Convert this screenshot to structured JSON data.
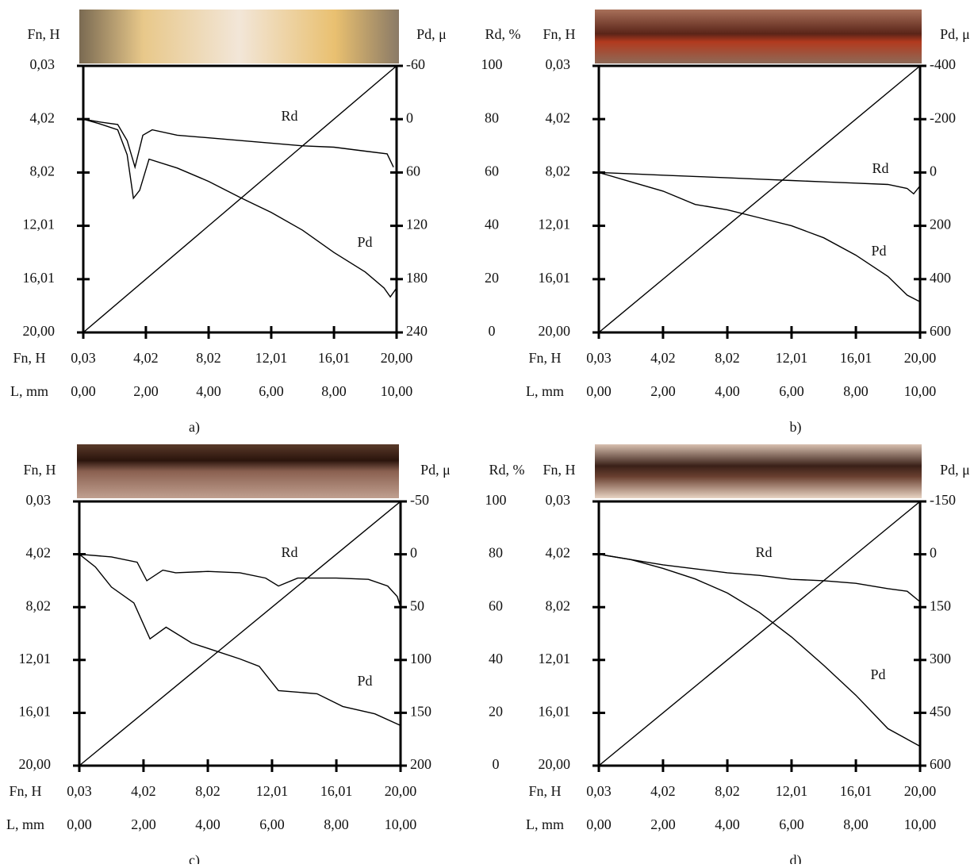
{
  "chart_data": [
    {
      "type": "line",
      "panel": "a)",
      "ylabel": "Fn, H",
      "y2label": "Pd, μ",
      "y3label": "Rd, %",
      "xlabel": "Fn, H",
      "x2label": "L, mm",
      "ylim": [
        20.0,
        0.03
      ],
      "yticks": [
        {
          "value": 0.03,
          "label": "0,03"
        },
        {
          "value": 4.02,
          "label": "4,02"
        },
        {
          "value": 8.02,
          "label": "8,02"
        },
        {
          "value": 12.01,
          "label": "12,01"
        },
        {
          "value": 16.01,
          "label": "16,01"
        },
        {
          "value": 20.0,
          "label": "20,00"
        }
      ],
      "y2lim": [
        240,
        -60
      ],
      "y2ticks": [
        -60,
        0,
        60,
        120,
        180,
        240
      ],
      "y3lim": [
        0,
        100
      ],
      "y3ticks": [
        0,
        20,
        40,
        60,
        80,
        100
      ],
      "xlim": [
        0.03,
        20.0
      ],
      "xticks": [
        {
          "value": 0.03,
          "label": "0,03"
        },
        {
          "value": 4.02,
          "label": "4,02"
        },
        {
          "value": 8.02,
          "label": "8,02"
        },
        {
          "value": 12.01,
          "label": "12,01"
        },
        {
          "value": 16.01,
          "label": "16,01"
        },
        {
          "value": 20.0,
          "label": "20,00"
        }
      ],
      "x2lim": [
        0,
        10
      ],
      "x2ticks": [
        {
          "value": 0,
          "label": "0,00"
        },
        {
          "value": 2,
          "label": "2,00"
        },
        {
          "value": 4,
          "label": "4,00"
        },
        {
          "value": 6,
          "label": "6,00"
        },
        {
          "value": 8,
          "label": "8,00"
        },
        {
          "value": 10,
          "label": "10,00"
        }
      ],
      "load": {
        "x": [
          0,
          10
        ],
        "values": [
          0.03,
          20.0
        ]
      },
      "series": [
        {
          "name": "Rd",
          "axis": "y3",
          "color": "#000000",
          "x": [
            0,
            0.5,
            1.1,
            1.4,
            1.65,
            1.9,
            2.2,
            3,
            4,
            5,
            6,
            7,
            8,
            9,
            9.7,
            9.9
          ],
          "values": [
            80,
            79,
            78,
            72,
            62,
            74,
            76,
            74,
            73,
            72,
            71,
            70,
            69.5,
            68,
            67,
            62
          ]
        },
        {
          "name": "Pd",
          "axis": "y2",
          "color": "#000000",
          "x": [
            0,
            0.5,
            1.1,
            1.4,
            1.6,
            1.8,
            2.1,
            3,
            4,
            5,
            6,
            7,
            8,
            9,
            9.6,
            9.8,
            10
          ],
          "values": [
            0,
            5,
            12,
            40,
            89,
            80,
            45,
            55,
            70,
            88,
            105,
            125,
            150,
            172,
            190,
            200,
            190
          ]
        }
      ]
    },
    {
      "type": "line",
      "panel": "b)",
      "ylabel": "Fn, H",
      "y2label": "Pd, μ",
      "xlabel": "Fn, H",
      "x2label": "L, mm",
      "ylim": [
        20.0,
        0.03
      ],
      "yticks": [
        {
          "value": 0.03,
          "label": "0,03"
        },
        {
          "value": 4.02,
          "label": "4,02"
        },
        {
          "value": 8.02,
          "label": "8,02"
        },
        {
          "value": 12.01,
          "label": "12,01"
        },
        {
          "value": 16.01,
          "label": "16,01"
        },
        {
          "value": 20.0,
          "label": "20,00"
        }
      ],
      "y2lim": [
        600,
        -400
      ],
      "y2ticks": [
        -400,
        -200,
        0,
        200,
        400,
        600
      ],
      "xlim": [
        0.03,
        20.0
      ],
      "xticks": [
        {
          "value": 0.03,
          "label": "0,03"
        },
        {
          "value": 4.02,
          "label": "4,02"
        },
        {
          "value": 8.02,
          "label": "8,02"
        },
        {
          "value": 12.01,
          "label": "12,01"
        },
        {
          "value": 16.01,
          "label": "16,01"
        },
        {
          "value": 20.0,
          "label": "20,00"
        }
      ],
      "x2lim": [
        0,
        10
      ],
      "x2ticks": [
        {
          "value": 0,
          "label": "0,00"
        },
        {
          "value": 2,
          "label": "2,00"
        },
        {
          "value": 4,
          "label": "4,00"
        },
        {
          "value": 6,
          "label": "6,00"
        },
        {
          "value": 8,
          "label": "8,00"
        },
        {
          "value": 10,
          "label": "10,00"
        }
      ],
      "load": {
        "x": [
          0,
          10
        ],
        "values": [
          0.03,
          20.0
        ]
      },
      "series": [
        {
          "name": "Rd",
          "axis": "y3",
          "color": "#000000",
          "x": [
            0,
            1,
            2,
            3,
            4,
            5,
            6,
            7,
            8,
            9,
            9.6,
            9.8,
            10
          ],
          "values": [
            60,
            59.5,
            59,
            58.5,
            58,
            57.5,
            57,
            56.5,
            56,
            55.5,
            54,
            52,
            55
          ]
        },
        {
          "name": "Pd",
          "axis": "y2",
          "color": "#000000",
          "x": [
            0,
            1,
            2,
            3,
            4,
            5,
            6,
            7,
            8,
            9,
            9.6,
            10
          ],
          "values": [
            0,
            35,
            70,
            120,
            140,
            170,
            200,
            245,
            310,
            390,
            460,
            485
          ]
        }
      ]
    },
    {
      "type": "line",
      "panel": "c)",
      "ylabel": "Fn, H",
      "y2label": "Pd, μ",
      "y3label": "Rd, %",
      "xlabel": "Fn, H",
      "x2label": "L, mm",
      "ylim": [
        20.0,
        0.03
      ],
      "yticks": [
        {
          "value": 0.03,
          "label": "0,03"
        },
        {
          "value": 4.02,
          "label": "4,02"
        },
        {
          "value": 8.02,
          "label": "8,02"
        },
        {
          "value": 12.01,
          "label": "12,01"
        },
        {
          "value": 16.01,
          "label": "16,01"
        },
        {
          "value": 20.0,
          "label": "20,00"
        }
      ],
      "y2lim": [
        200,
        -50
      ],
      "y2ticks": [
        -50,
        0,
        50,
        100,
        150,
        200
      ],
      "y3lim": [
        0,
        100
      ],
      "y3ticks": [
        0,
        20,
        40,
        60,
        80,
        100
      ],
      "xlim": [
        0.03,
        20.0
      ],
      "xticks": [
        {
          "value": 0.03,
          "label": "0,03"
        },
        {
          "value": 4.02,
          "label": "4,02"
        },
        {
          "value": 8.02,
          "label": "8,02"
        },
        {
          "value": 12.01,
          "label": "12,01"
        },
        {
          "value": 16.01,
          "label": "16,01"
        },
        {
          "value": 20.0,
          "label": "20,00"
        }
      ],
      "x2lim": [
        0,
        10
      ],
      "x2ticks": [
        {
          "value": 0,
          "label": "0,00"
        },
        {
          "value": 2,
          "label": "2,00"
        },
        {
          "value": 4,
          "label": "4,00"
        },
        {
          "value": 6,
          "label": "6,00"
        },
        {
          "value": 8,
          "label": "8,00"
        },
        {
          "value": 10,
          "label": "10,00"
        }
      ],
      "load": {
        "x": [
          0,
          10
        ],
        "values": [
          0.03,
          20.0
        ]
      },
      "series": [
        {
          "name": "Rd",
          "axis": "y3",
          "color": "#000000",
          "x": [
            0,
            1,
            1.8,
            2.1,
            2.6,
            3,
            4,
            5,
            5.8,
            6.2,
            6.8,
            8,
            9,
            9.6,
            9.9,
            10
          ],
          "values": [
            80,
            79,
            77,
            70,
            74,
            73,
            73.5,
            73,
            71,
            68,
            71,
            71,
            70.5,
            68,
            64,
            60
          ]
        },
        {
          "name": "Pd",
          "axis": "y2",
          "color": "#000000",
          "x": [
            0,
            0.5,
            1,
            1.7,
            2.2,
            2.7,
            3.5,
            4.2,
            5,
            5.6,
            6.2,
            7.4,
            8.2,
            9.2,
            10
          ],
          "values": [
            0,
            12,
            31,
            46,
            80,
            69,
            84,
            91,
            99,
            106,
            129,
            132,
            144,
            151,
            162
          ]
        }
      ]
    },
    {
      "type": "line",
      "panel": "d)",
      "ylabel": "Fn, H",
      "y2label": "Pd, μ",
      "xlabel": "Fn, H",
      "x2label": "L, mm",
      "ylim": [
        20.0,
        0.03
      ],
      "yticks": [
        {
          "value": 0.03,
          "label": "0,03"
        },
        {
          "value": 4.02,
          "label": "4,02"
        },
        {
          "value": 8.02,
          "label": "8,02"
        },
        {
          "value": 12.01,
          "label": "12,01"
        },
        {
          "value": 16.01,
          "label": "16,01"
        },
        {
          "value": 20.0,
          "label": "20,00"
        }
      ],
      "y2lim": [
        600,
        -150
      ],
      "y2ticks": [
        -150,
        0,
        150,
        300,
        450,
        600
      ],
      "xlim": [
        0.03,
        20.0
      ],
      "xticks": [
        {
          "value": 0.03,
          "label": "0,03"
        },
        {
          "value": 4.02,
          "label": "4,02"
        },
        {
          "value": 8.02,
          "label": "8,02"
        },
        {
          "value": 12.01,
          "label": "12,01"
        },
        {
          "value": 16.01,
          "label": "16,01"
        },
        {
          "value": 20.0,
          "label": "20,00"
        }
      ],
      "x2lim": [
        0,
        10
      ],
      "x2ticks": [
        {
          "value": 0,
          "label": "0,00"
        },
        {
          "value": 2,
          "label": "2,00"
        },
        {
          "value": 4,
          "label": "4,00"
        },
        {
          "value": 6,
          "label": "6,00"
        },
        {
          "value": 8,
          "label": "8,00"
        },
        {
          "value": 10,
          "label": "10,00"
        }
      ],
      "load": {
        "x": [
          0,
          10
        ],
        "values": [
          0.03,
          20.0
        ]
      },
      "series": [
        {
          "name": "Rd",
          "axis": "y3",
          "color": "#000000",
          "x": [
            0,
            1,
            2,
            3,
            4,
            5,
            6,
            7,
            8,
            9,
            9.6,
            10
          ],
          "values": [
            80,
            78,
            76,
            74.5,
            73,
            72,
            70.5,
            70,
            69,
            67,
            66,
            62
          ]
        },
        {
          "name": "Pd",
          "axis": "y2",
          "color": "#000000",
          "x": [
            0,
            1,
            2,
            3,
            4,
            5,
            6,
            7,
            8,
            9,
            10
          ],
          "values": [
            0,
            15,
            40,
            70,
            110,
            165,
            235,
            315,
            400,
            495,
            545
          ]
        }
      ]
    }
  ]
}
